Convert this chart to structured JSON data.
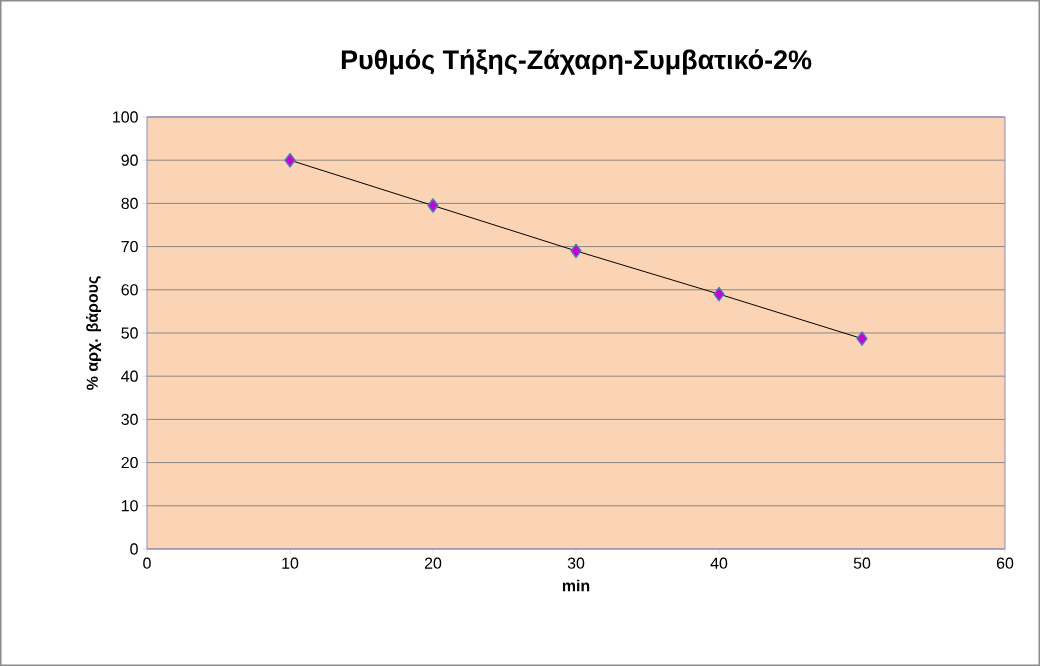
{
  "chart_data": {
    "type": "line",
    "title": "Ρυθμός Τήξης-Ζάχαρη-Συμβατικό-2%",
    "xlabel": "min",
    "ylabel": "% αρχ. βάρους",
    "x": [
      10,
      20,
      30,
      40,
      50
    ],
    "series": [
      {
        "color": "#cc00cc",
        "values": [
          90,
          79.5,
          69,
          59,
          48.7
        ]
      }
    ],
    "xlim": [
      0,
      60
    ],
    "xticks": [
      0,
      10,
      20,
      30,
      40,
      50,
      60
    ],
    "ylim": [
      0,
      100
    ],
    "yticks": [
      0,
      10,
      20,
      30,
      40,
      50,
      60,
      70,
      80,
      90,
      100
    ],
    "grid": "y",
    "marker": "diamond",
    "line_style": "solid"
  }
}
